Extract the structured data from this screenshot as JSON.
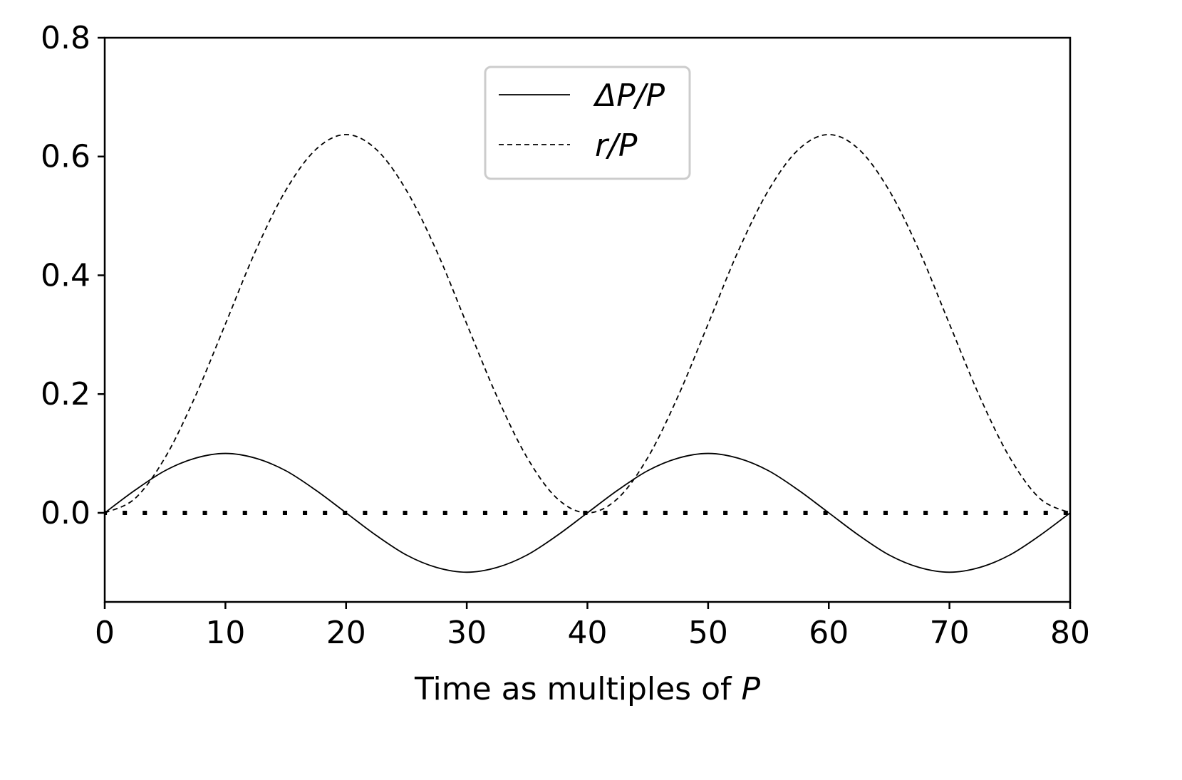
{
  "chart_data": {
    "type": "line",
    "title": "",
    "xlabel_prefix": "Time as multiples of ",
    "xlabel_var": "P",
    "ylabel": "",
    "xlim": [
      0,
      80
    ],
    "ylim": [
      -0.15,
      0.8
    ],
    "xticks": [
      0,
      10,
      20,
      30,
      40,
      50,
      60,
      70,
      80
    ],
    "xtick_labels": [
      "0",
      "10",
      "20",
      "30",
      "40",
      "50",
      "60",
      "70",
      "80"
    ],
    "yticks": [
      0.0,
      0.2,
      0.4,
      0.6,
      0.8
    ],
    "ytick_labels": [
      "0.0",
      "0.2",
      "0.4",
      "0.6",
      "0.8"
    ],
    "grid": false,
    "legend_position": "upper-center",
    "series": [
      {
        "name": "ΔP/P",
        "style": "solid",
        "color": "#000000",
        "x": [
          0,
          2.5,
          5,
          7.5,
          10,
          12.5,
          15,
          17.5,
          20,
          22.5,
          25,
          27.5,
          30,
          32.5,
          35,
          37.5,
          40,
          42.5,
          45,
          47.5,
          50,
          52.5,
          55,
          57.5,
          60,
          62.5,
          65,
          67.5,
          70,
          72.5,
          75,
          77.5,
          80
        ],
        "y": [
          0.0,
          0.038,
          0.071,
          0.092,
          0.1,
          0.092,
          0.071,
          0.038,
          0.0,
          -0.038,
          -0.071,
          -0.092,
          -0.1,
          -0.092,
          -0.071,
          -0.038,
          0.0,
          0.038,
          0.071,
          0.092,
          0.1,
          0.092,
          0.071,
          0.038,
          0.0,
          -0.038,
          -0.071,
          -0.092,
          -0.1,
          -0.092,
          -0.071,
          -0.038,
          0.0
        ]
      },
      {
        "name": "r/P",
        "style": "dashed",
        "color": "#000000",
        "x": [
          0,
          2.5,
          5,
          7.5,
          10,
          12.5,
          15,
          17.5,
          20,
          22.5,
          25,
          27.5,
          30,
          32.5,
          35,
          37.5,
          40,
          42.5,
          45,
          47.5,
          50,
          52.5,
          55,
          57.5,
          60,
          62.5,
          65,
          67.5,
          70,
          72.5,
          75,
          77.5,
          80
        ],
        "y": [
          0.0,
          0.024,
          0.093,
          0.196,
          0.318,
          0.441,
          0.543,
          0.612,
          0.637,
          0.612,
          0.543,
          0.441,
          0.318,
          0.196,
          0.093,
          0.024,
          0.0,
          0.024,
          0.093,
          0.196,
          0.318,
          0.441,
          0.543,
          0.612,
          0.637,
          0.612,
          0.543,
          0.441,
          0.318,
          0.196,
          0.093,
          0.024,
          0.0
        ]
      },
      {
        "name": "",
        "style": "dotted",
        "color": "#000000",
        "x": [
          0,
          80
        ],
        "y": [
          0.0,
          0.0
        ]
      }
    ]
  }
}
